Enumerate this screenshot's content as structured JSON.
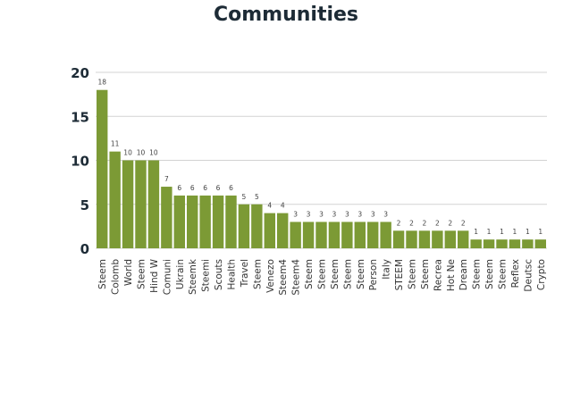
{
  "chart_data": {
    "type": "bar",
    "title": "Communities",
    "xlabel": "",
    "ylabel": "",
    "ylim": [
      0,
      20
    ],
    "yticks": [
      0,
      5,
      10,
      15,
      20
    ],
    "grid": true,
    "bar_color": "#7c9a35",
    "categories": [
      "Steem",
      "Colomb",
      "World",
      "Steem",
      "Hind W",
      "Comuni",
      "Ukrain",
      "Steemk",
      "Steemi",
      "Scouts",
      "Health",
      "Travel",
      "Steem",
      "Venezo",
      "Steem4",
      "Steem4",
      "Steem",
      "Steem",
      "Steem",
      "Steem",
      "Steem",
      "Person",
      "Italy",
      "STEEM",
      "Steem",
      "Steem",
      "Recrea",
      "Hot Ne",
      "Dream",
      "Steem",
      "Steem",
      "Steem",
      "Reflex",
      "Deutsc",
      "Crypto"
    ],
    "values": [
      18,
      11,
      10,
      10,
      10,
      7,
      6,
      6,
      6,
      6,
      6,
      5,
      5,
      4,
      4,
      3,
      3,
      3,
      3,
      3,
      3,
      3,
      3,
      2,
      2,
      2,
      2,
      2,
      2,
      1,
      1,
      1,
      1,
      1,
      1
    ]
  }
}
